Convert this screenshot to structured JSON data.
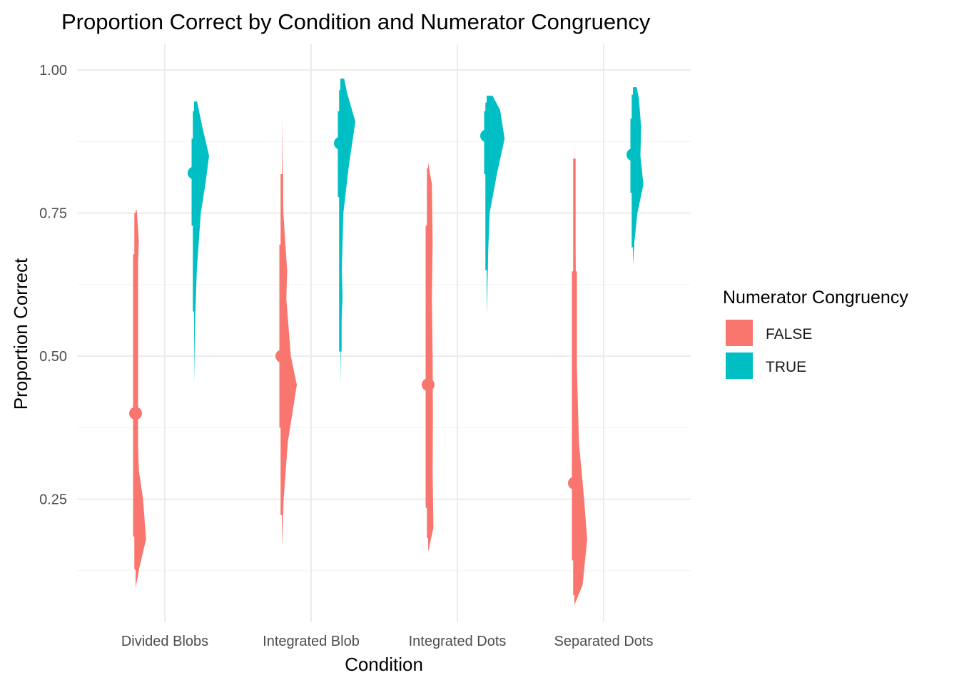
{
  "chart_data": {
    "type": "half-violin with point-interval",
    "title": "Proportion Correct by Condition and Numerator Congruency",
    "xlabel": "Condition",
    "ylabel": "Proportion Correct",
    "categories": [
      "Divided Blobs",
      "Integrated Blob",
      "Integrated Dots",
      "Separated Dots"
    ],
    "ylim": [
      0.035,
      1.045
    ],
    "yticks": [
      0.25,
      0.5,
      0.75,
      1.0
    ],
    "ytick_labels": [
      "0.25",
      "0.50",
      "0.75",
      "1.00"
    ],
    "grid": true,
    "legend": {
      "title": "Numerator Congruency",
      "position": "right",
      "entries": [
        "FALSE",
        "TRUE"
      ]
    },
    "series": [
      {
        "name": "FALSE",
        "color": "#F8766D",
        "groups": [
          {
            "category": "Divided Blobs",
            "point": 0.4,
            "inner": [
              0.185,
              0.678
            ],
            "outer": [
              0.127,
              0.75
            ],
            "density": [
              [
                0.095,
                0.0
              ],
              [
                0.13,
                0.25
              ],
              [
                0.18,
                0.7
              ],
              [
                0.25,
                0.5
              ],
              [
                0.3,
                0.22
              ],
              [
                0.4,
                0.1
              ],
              [
                0.5,
                0.12
              ],
              [
                0.6,
                0.07
              ],
              [
                0.7,
                0.22
              ],
              [
                0.755,
                0.08
              ]
            ]
          },
          {
            "category": "Integrated Blob",
            "point": 0.5,
            "inner": [
              0.375,
              0.695
            ],
            "outer": [
              0.222,
              0.818
            ],
            "density": [
              [
                0.165,
                0.0
              ],
              [
                0.25,
                0.12
              ],
              [
                0.35,
                0.4
              ],
              [
                0.45,
                1.0
              ],
              [
                0.5,
                0.6
              ],
              [
                0.6,
                0.3
              ],
              [
                0.65,
                0.35
              ],
              [
                0.75,
                0.1
              ],
              [
                0.85,
                0.03
              ],
              [
                0.92,
                0.0
              ]
            ]
          },
          {
            "category": "Integrated Dots",
            "point": 0.45,
            "inner": [
              0.235,
              0.728
            ],
            "outer": [
              0.182,
              0.828
            ],
            "density": [
              [
                0.158,
                0.0
              ],
              [
                0.2,
                0.35
              ],
              [
                0.3,
                0.3
              ],
              [
                0.4,
                0.32
              ],
              [
                0.5,
                0.3
              ],
              [
                0.6,
                0.25
              ],
              [
                0.7,
                0.3
              ],
              [
                0.8,
                0.25
              ],
              [
                0.838,
                0.0
              ]
            ]
          },
          {
            "category": "Separated Dots",
            "point": 0.278,
            "inner": [
              0.143,
              0.648
            ],
            "outer": [
              0.082,
              0.845
            ],
            "density": [
              [
                0.065,
                0.0
              ],
              [
                0.1,
                0.55
              ],
              [
                0.18,
                0.85
              ],
              [
                0.25,
                0.65
              ],
              [
                0.35,
                0.3
              ],
              [
                0.5,
                0.15
              ],
              [
                0.62,
                0.1
              ],
              [
                0.75,
                0.05
              ],
              [
                0.872,
                0.0
              ]
            ]
          }
        ]
      },
      {
        "name": "TRUE",
        "color": "#00BFC4",
        "groups": [
          {
            "category": "Divided Blobs",
            "point": 0.82,
            "inner": [
              0.728,
              0.88
            ],
            "outer": [
              0.578,
              0.928
            ],
            "density": [
              [
                0.45,
                0.0
              ],
              [
                0.55,
                0.05
              ],
              [
                0.65,
                0.18
              ],
              [
                0.75,
                0.45
              ],
              [
                0.8,
                0.75
              ],
              [
                0.85,
                1.0
              ],
              [
                0.9,
                0.55
              ],
              [
                0.945,
                0.2
              ]
            ]
          },
          {
            "category": "Integrated Blob",
            "point": 0.872,
            "inner": [
              0.778,
              0.928
            ],
            "outer": [
              0.508,
              0.965
            ],
            "density": [
              [
                0.45,
                0.0
              ],
              [
                0.55,
                0.05
              ],
              [
                0.6,
                0.15
              ],
              [
                0.65,
                0.1
              ],
              [
                0.75,
                0.2
              ],
              [
                0.83,
                0.55
              ],
              [
                0.91,
                1.0
              ],
              [
                0.96,
                0.45
              ],
              [
                0.985,
                0.25
              ]
            ]
          },
          {
            "category": "Integrated Dots",
            "point": 0.885,
            "inner": [
              0.818,
              0.928
            ],
            "outer": [
              0.65,
              0.943
            ],
            "density": [
              [
                0.572,
                0.0
              ],
              [
                0.62,
                0.05
              ],
              [
                0.68,
                0.1
              ],
              [
                0.75,
                0.2
              ],
              [
                0.82,
                0.7
              ],
              [
                0.88,
                1.2
              ],
              [
                0.93,
                0.9
              ],
              [
                0.955,
                0.4
              ]
            ]
          },
          {
            "category": "Separated Dots",
            "point": 0.852,
            "inner": [
              0.785,
              0.915
            ],
            "outer": [
              0.69,
              0.957
            ],
            "density": [
              [
                0.658,
                0.0
              ],
              [
                0.7,
                0.1
              ],
              [
                0.75,
                0.3
              ],
              [
                0.8,
                0.7
              ],
              [
                0.85,
                0.5
              ],
              [
                0.9,
                0.55
              ],
              [
                0.95,
                0.4
              ],
              [
                0.97,
                0.25
              ]
            ]
          }
        ]
      }
    ]
  }
}
